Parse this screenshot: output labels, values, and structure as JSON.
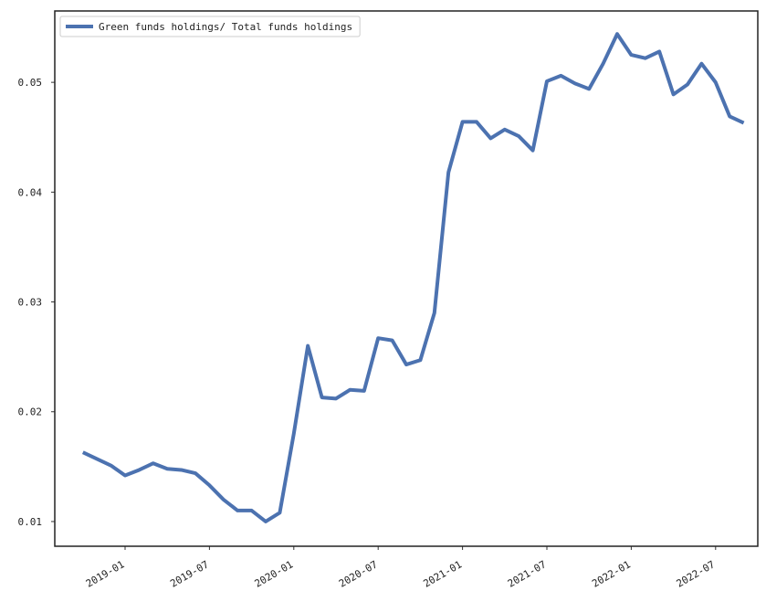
{
  "chart_data": {
    "type": "line",
    "x": [
      "2018-10",
      "2018-11",
      "2018-12",
      "2019-01",
      "2019-02",
      "2019-03",
      "2019-04",
      "2019-05",
      "2019-06",
      "2019-07",
      "2019-08",
      "2019-09",
      "2019-10",
      "2019-11",
      "2019-12",
      "2020-01",
      "2020-02",
      "2020-03",
      "2020-04",
      "2020-05",
      "2020-06",
      "2020-07",
      "2020-08",
      "2020-09",
      "2020-10",
      "2020-11",
      "2020-12",
      "2021-01",
      "2021-02",
      "2021-03",
      "2021-04",
      "2021-05",
      "2021-06",
      "2021-07",
      "2021-08",
      "2021-09",
      "2021-10",
      "2021-11",
      "2021-12",
      "2022-01",
      "2022-02",
      "2022-03",
      "2022-04",
      "2022-05",
      "2022-06",
      "2022-07",
      "2022-08",
      "2022-09"
    ],
    "series": [
      {
        "name": "Green funds holdings/ Total funds holdings",
        "color": "#4c72b0",
        "values": [
          0.0163,
          0.0157,
          0.0151,
          0.0142,
          0.0147,
          0.0153,
          0.0148,
          0.0147,
          0.0144,
          0.0133,
          0.012,
          0.011,
          0.011,
          0.01,
          0.0108,
          0.018,
          0.026,
          0.0213,
          0.0212,
          0.022,
          0.0219,
          0.0267,
          0.0265,
          0.0243,
          0.0247,
          0.029,
          0.0418,
          0.0464,
          0.0464,
          0.0449,
          0.0457,
          0.0451,
          0.0438,
          0.0501,
          0.0506,
          0.0499,
          0.0494,
          0.0517,
          0.0544,
          0.0525,
          0.0522,
          0.0528,
          0.0489,
          0.0498,
          0.0517,
          0.05,
          0.0469,
          0.0463
        ]
      }
    ],
    "xlim": [
      "2018-08",
      "2022-10"
    ],
    "xticks": [
      "2019-01",
      "2019-07",
      "2020-01",
      "2020-07",
      "2021-01",
      "2021-07",
      "2022-01",
      "2022-07"
    ],
    "ylim": [
      0.00775,
      0.0565
    ],
    "yticks": [
      0.01,
      0.02,
      0.03,
      0.04,
      0.05
    ],
    "grid": false,
    "legend": "upper left"
  }
}
